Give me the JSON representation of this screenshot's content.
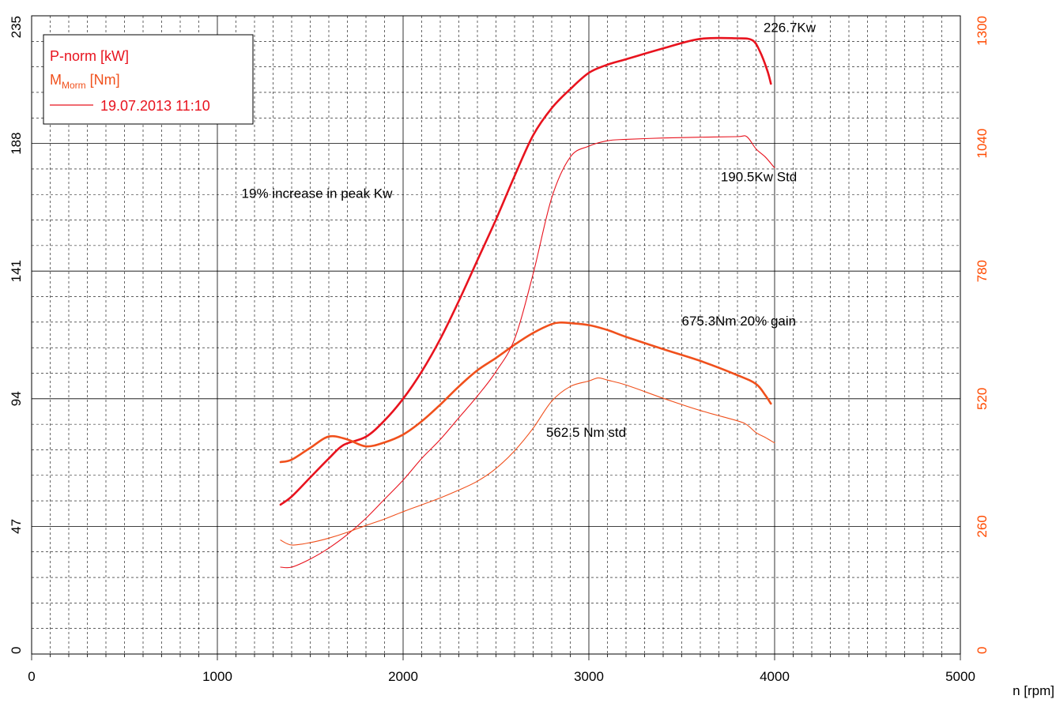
{
  "colors": {
    "power": "#e8131e",
    "torque": "#f0501c",
    "right_axis": "#ff4a00",
    "grid_major": "#000000",
    "grid_minor": "#000000"
  },
  "legend": {
    "power_label": "P-norm [kW]",
    "torque_main": "M",
    "torque_sub": "Morm",
    "torque_unit": " [Nm]",
    "run_label": "19.07.2013 11:10"
  },
  "chart_data": {
    "type": "line",
    "xlabel": "n [rpm]",
    "xlim": [
      0,
      5000
    ],
    "x_ticks": [
      0,
      1000,
      2000,
      3000,
      4000,
      5000
    ],
    "y_left": {
      "ylim": [
        0,
        235
      ],
      "ticks": [
        0,
        47,
        94,
        141,
        188,
        235
      ],
      "unit": "kW"
    },
    "y_right": {
      "ylim": [
        0,
        1300
      ],
      "ticks": [
        0,
        260,
        520,
        780,
        1040,
        1300
      ],
      "unit": "Nm"
    },
    "grid": true,
    "legend_position": "top-left",
    "series": [
      {
        "name": "P-norm [kW]",
        "axis": "left",
        "style": "thick",
        "x": [
          1340,
          1400,
          1500,
          1600,
          1680,
          1800,
          1900,
          2000,
          2100,
          2200,
          2300,
          2400,
          2500,
          2600,
          2700,
          2800,
          2900,
          3000,
          3100,
          3200,
          3400,
          3600,
          3800,
          3880,
          3920,
          3960,
          3980
        ],
        "y": [
          55,
          58,
          65,
          72,
          77,
          80,
          86,
          94,
          104,
          116,
          130,
          145,
          160,
          176,
          191,
          201,
          208,
          214,
          217,
          219,
          223,
          226.5,
          226.7,
          226,
          222,
          215,
          210
        ]
      },
      {
        "name": "M [Nm]",
        "axis": "right",
        "style": "thick",
        "x": [
          1340,
          1400,
          1500,
          1600,
          1700,
          1800,
          1900,
          2000,
          2100,
          2200,
          2300,
          2400,
          2500,
          2600,
          2700,
          2800,
          2850,
          2900,
          3000,
          3100,
          3200,
          3400,
          3600,
          3800,
          3900,
          3950,
          3980
        ],
        "y": [
          391,
          396,
          420,
          443,
          437,
          423,
          431,
          447,
          474,
          508,
          545,
          578,
          603,
          630,
          654,
          672,
          675.3,
          674,
          670,
          660,
          646,
          621,
          597,
          568,
          550,
          527,
          510
        ]
      },
      {
        "name": "P std",
        "axis": "left",
        "style": "thin",
        "x": [
          1340,
          1400,
          1500,
          1600,
          1700,
          1800,
          1900,
          2000,
          2100,
          2200,
          2300,
          2400,
          2500,
          2600,
          2700,
          2800,
          2900,
          3000,
          3100,
          3200,
          3400,
          3600,
          3800,
          3850,
          3900,
          3950,
          4000
        ],
        "y": [
          32,
          32,
          35,
          39,
          44,
          50,
          57,
          64,
          72,
          79,
          87,
          95,
          104,
          116,
          140,
          168,
          183,
          187,
          189,
          189.5,
          190,
          190.3,
          190.5,
          190.5,
          186,
          183,
          179
        ]
      },
      {
        "name": "M std",
        "axis": "right",
        "style": "thin",
        "x": [
          1340,
          1400,
          1500,
          1600,
          1700,
          1800,
          1900,
          2000,
          2100,
          2200,
          2300,
          2400,
          2500,
          2600,
          2700,
          2800,
          2900,
          3000,
          3050,
          3100,
          3200,
          3400,
          3600,
          3800,
          3850,
          3900,
          3950,
          4000
        ],
        "y": [
          232,
          222,
          227,
          236,
          248,
          262,
          275,
          290,
          304,
          318,
          334,
          352,
          378,
          414,
          460,
          515,
          545,
          556,
          562.5,
          558,
          548,
          521,
          496,
          475,
          467,
          451,
          441,
          430
        ]
      }
    ],
    "annotations": [
      {
        "text": "226.7Kw",
        "x": 3940,
        "y_axis": "left",
        "y": 229
      },
      {
        "text": "190.5Kw Std",
        "x": 3710,
        "y_axis": "left",
        "y": 174
      },
      {
        "text": "19% increase in peak Kw",
        "x": 1130,
        "y_axis": "left",
        "y": 168
      },
      {
        "text": "675.3Nm 20% gain",
        "x": 3500,
        "y_axis": "left",
        "y": 121
      },
      {
        "text": "562.5 Nm std",
        "x": 2770,
        "y_axis": "left",
        "y": 80
      }
    ]
  }
}
